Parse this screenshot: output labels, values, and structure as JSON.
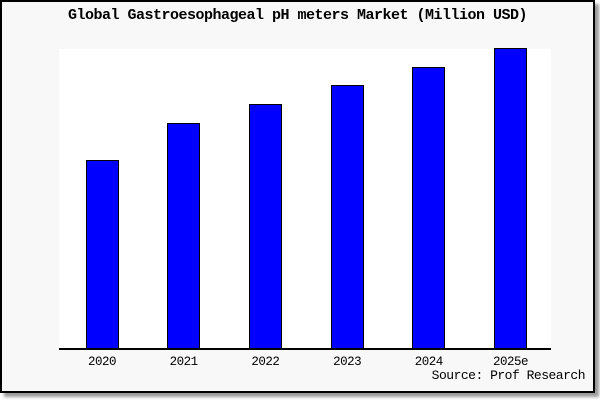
{
  "title": "Global Gastroesophageal pH meters Market (Million USD)",
  "source": "Source: Prof Research",
  "colors": {
    "bar_fill": "#0000ff",
    "bar_border": "#000000",
    "axis": "#000000",
    "background": "#f8f8f8",
    "plot_background": "#ffffff",
    "frame_border": "#000000",
    "shadow": "#999999",
    "text": "#000000"
  },
  "chart_data": {
    "type": "bar",
    "title": "Global Gastroesophageal pH meters Market (Million USD)",
    "categories": [
      "2020",
      "2021",
      "2022",
      "2023",
      "2024",
      "2025e"
    ],
    "values": [
      62.7,
      75.0,
      81.3,
      87.7,
      93.7,
      100.0
    ],
    "value_scale": "relative, max bar = 100 (no y-axis scale shown in image)",
    "xlabel": "",
    "ylabel": "",
    "ylim": [
      0,
      100
    ],
    "grid": false,
    "legend": false,
    "source_caption": "Source: Prof Research"
  }
}
